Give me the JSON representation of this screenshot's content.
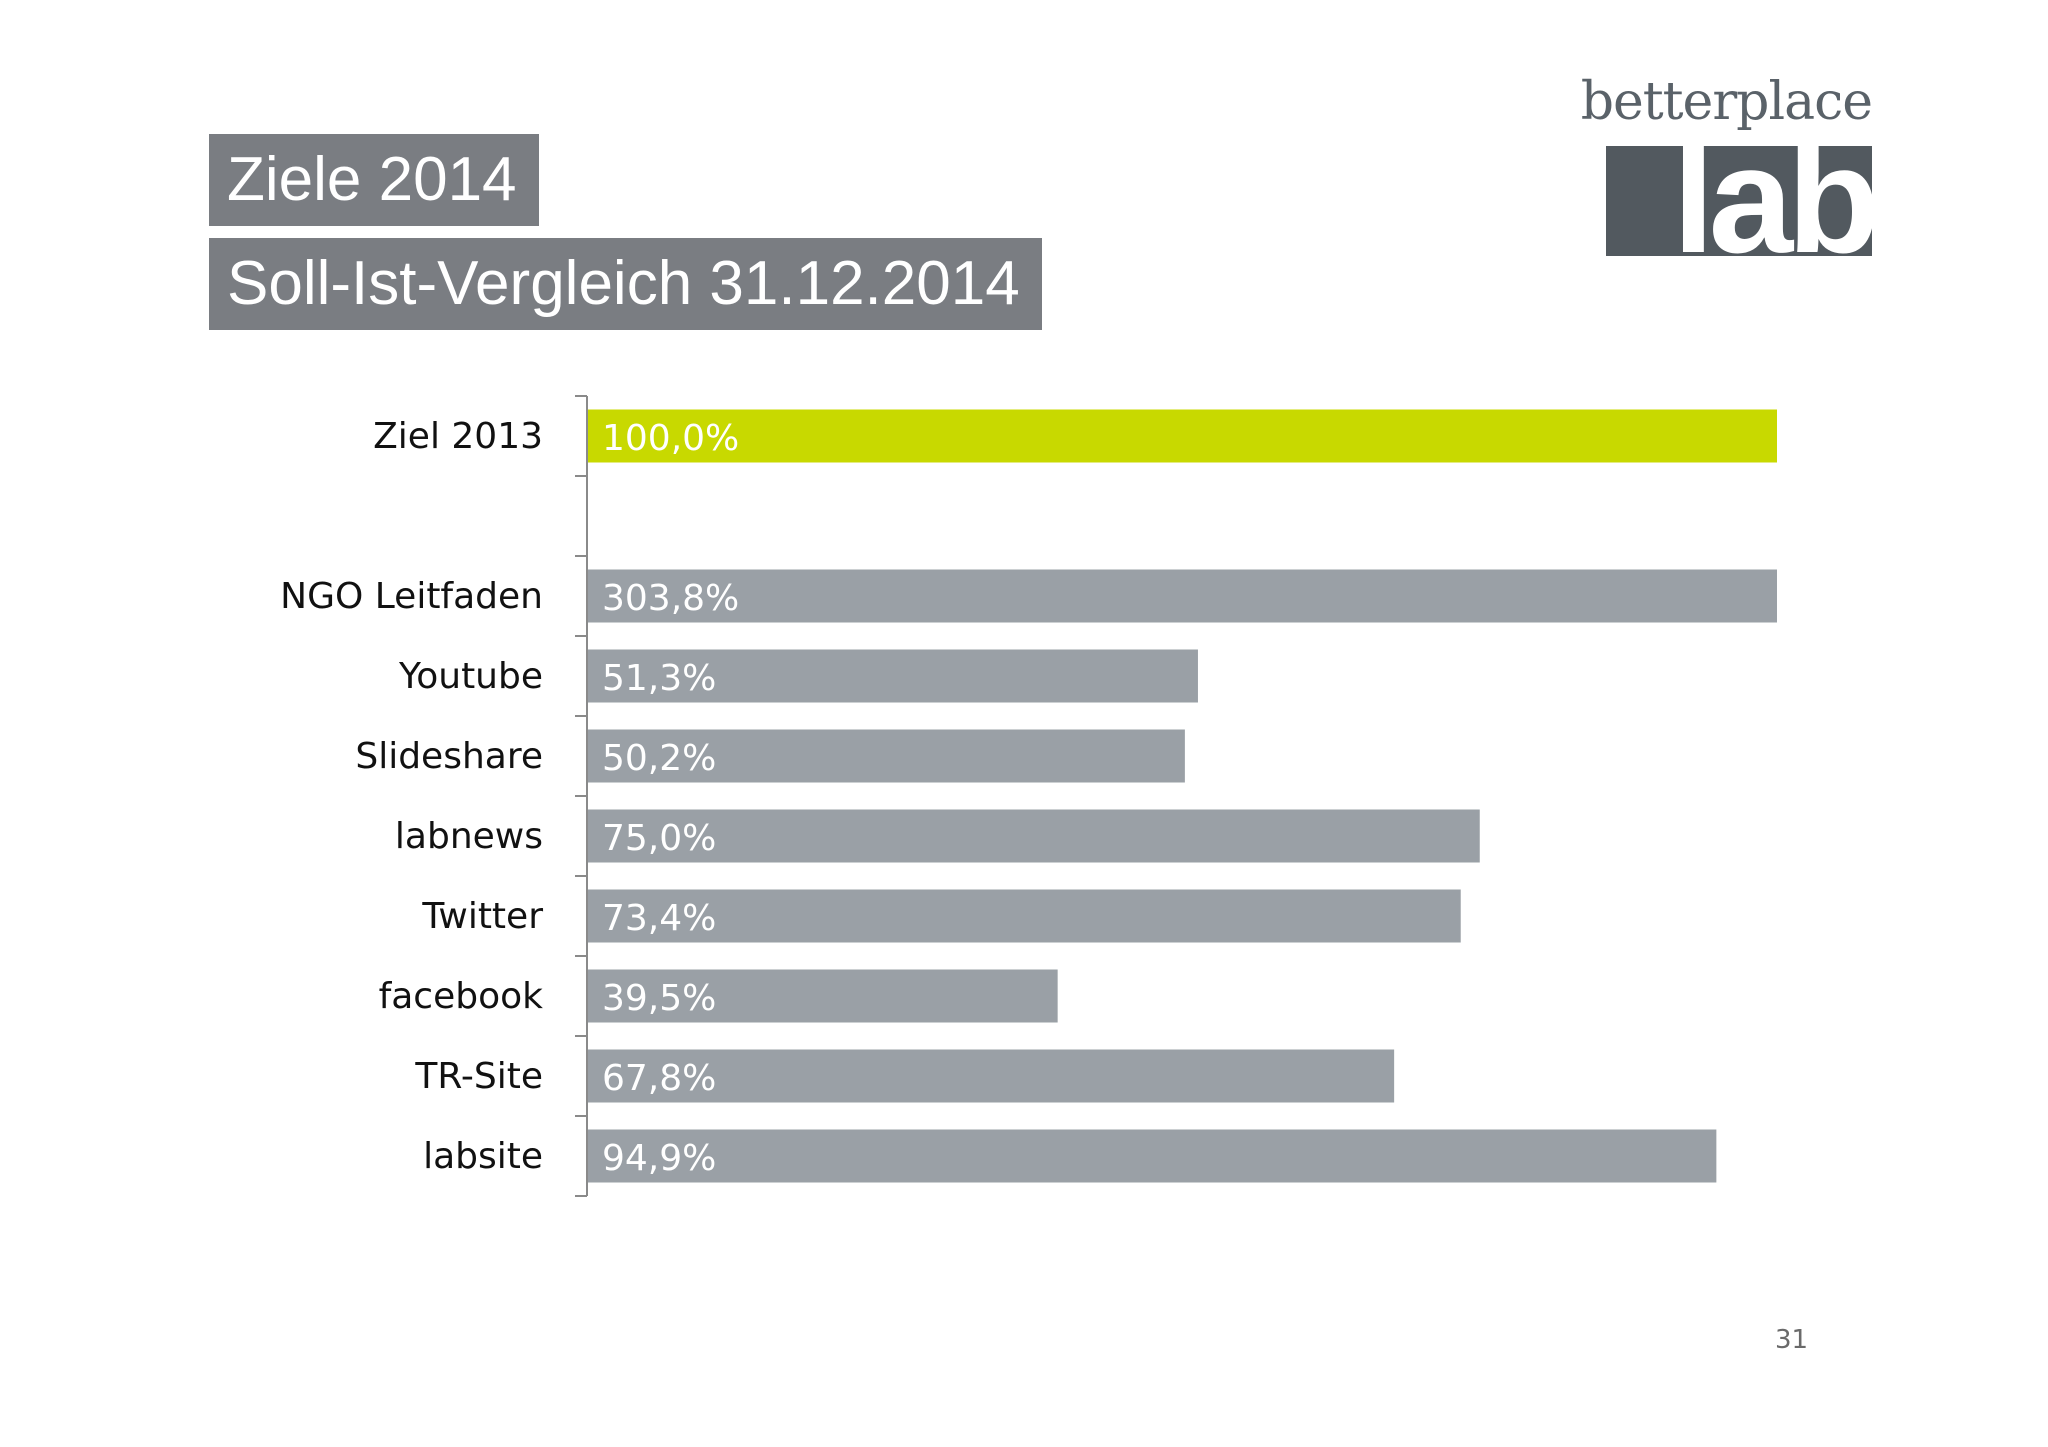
{
  "slide": {
    "title": "Ziele 2014",
    "subtitle": "Soll-Ist-Vergleich 31.12.2014",
    "page_number": "31"
  },
  "logo": {
    "wordmark": "betterplace",
    "box_text": "lab"
  },
  "colors": {
    "title_box": "#7a7d82",
    "target_bar": "#c8d900",
    "actual_bar": "#9aa0a6",
    "logo_box": "#52595f"
  },
  "chart_data": {
    "type": "bar",
    "orientation": "horizontal",
    "categories": [
      "Ziel 2013",
      "",
      "NGO Leitfaden",
      "Youtube",
      "Slideshare",
      "labnews",
      "Twitter",
      "facebook",
      "TR-Site",
      "labsite"
    ],
    "values": [
      100.0,
      null,
      303.8,
      51.3,
      50.2,
      75.0,
      73.4,
      39.5,
      67.8,
      94.9
    ],
    "value_labels": [
      "100,0%",
      "",
      "303,8%",
      "51,3%",
      "50,2%",
      "75,0%",
      "73,4%",
      "39,5%",
      "67,8%",
      "94,9%"
    ],
    "bar_colors": [
      "#c8d900",
      null,
      "#9aa0a6",
      "#9aa0a6",
      "#9aa0a6",
      "#9aa0a6",
      "#9aa0a6",
      "#9aa0a6",
      "#9aa0a6",
      "#9aa0a6"
    ],
    "xlim": [
      0,
      100
    ],
    "clipped_at_max": true,
    "grid": false,
    "legend": "none"
  }
}
